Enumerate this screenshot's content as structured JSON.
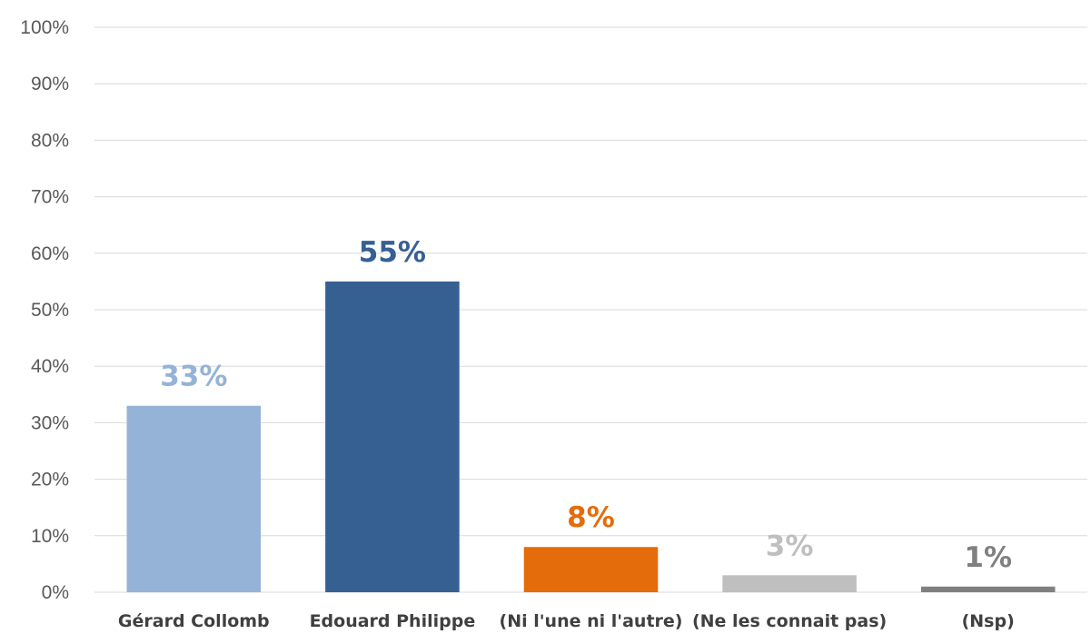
{
  "chart_data": {
    "type": "bar",
    "categories": [
      "Gérard Collomb",
      "Edouard Philippe",
      "(Ni l'une ni l'autre)",
      "(Ne les connait pas)",
      "(Nsp)"
    ],
    "values": [
      33,
      55,
      8,
      3,
      1
    ],
    "value_labels": [
      "33%",
      "55%",
      "8%",
      "3%",
      "1%"
    ],
    "bar_colors": [
      "#95b3d7",
      "#366092",
      "#e46c0a",
      "#bfbfbf",
      "#808080"
    ],
    "ylim": [
      0,
      100
    ],
    "yticks": [
      0,
      10,
      20,
      30,
      40,
      50,
      60,
      70,
      80,
      90,
      100
    ],
    "ytick_labels": [
      "0%",
      "10%",
      "20%",
      "30%",
      "40%",
      "50%",
      "60%",
      "70%",
      "80%",
      "90%",
      "100%"
    ],
    "grid": true,
    "legend": "none"
  }
}
